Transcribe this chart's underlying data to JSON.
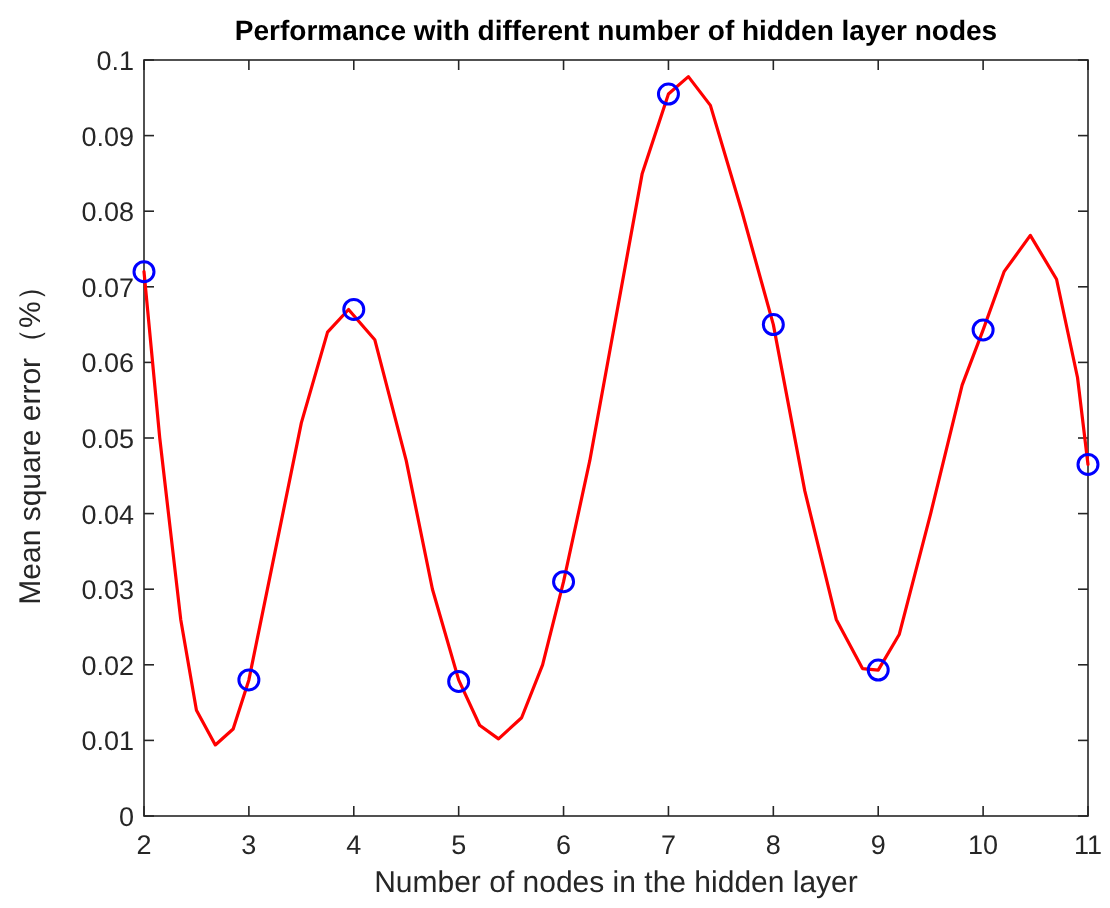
{
  "chart_data": {
    "type": "line",
    "title": "Performance with different number of hidden layer nodes",
    "xlabel": "Number of nodes in the hidden layer",
    "ylabel": "Mean square error（%）",
    "xlim": [
      2,
      11
    ],
    "xticks": [
      2,
      3,
      4,
      5,
      6,
      7,
      8,
      9,
      10,
      11
    ],
    "ylim": [
      0,
      0.1
    ],
    "yticks": [
      0,
      0.01,
      0.02,
      0.03,
      0.04,
      0.05,
      0.06,
      0.07,
      0.08,
      0.09,
      0.1
    ],
    "series": [
      {
        "type": "line",
        "color": "#ff0000",
        "marker": "none",
        "x": [
          2.0,
          2.15,
          2.35,
          2.5,
          2.68,
          2.85,
          3.0,
          3.25,
          3.5,
          3.75,
          3.95,
          4.2,
          4.5,
          4.75,
          5.0,
          5.2,
          5.38,
          5.6,
          5.8,
          6.0,
          6.25,
          6.5,
          6.75,
          7.0,
          7.19,
          7.4,
          7.7,
          8.0,
          8.3,
          8.6,
          8.85,
          9.0,
          9.2,
          9.5,
          9.8,
          10.0,
          10.2,
          10.45,
          10.7,
          10.9,
          11.0
        ],
        "values": [
          0.072,
          0.05,
          0.026,
          0.014,
          0.0094,
          0.0115,
          0.018,
          0.035,
          0.052,
          0.064,
          0.067,
          0.063,
          0.047,
          0.03,
          0.018,
          0.012,
          0.0102,
          0.013,
          0.02,
          0.031,
          0.047,
          0.066,
          0.085,
          0.0955,
          0.0978,
          0.094,
          0.08,
          0.065,
          0.043,
          0.026,
          0.0195,
          0.0193,
          0.024,
          0.04,
          0.057,
          0.0643,
          0.072,
          0.0768,
          0.071,
          0.058,
          0.0465
        ]
      },
      {
        "type": "scatter",
        "color": "#0000ff",
        "marker": "circle",
        "x": [
          2,
          3,
          4,
          5,
          6,
          7,
          8,
          9,
          10,
          11
        ],
        "values": [
          0.072,
          0.018,
          0.067,
          0.0178,
          0.031,
          0.0955,
          0.065,
          0.0193,
          0.0643,
          0.0465
        ]
      }
    ]
  }
}
